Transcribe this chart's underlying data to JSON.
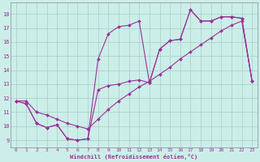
{
  "xlabel": "Windchill (Refroidissement éolien,°C)",
  "xlim": [
    -0.5,
    23.5
  ],
  "ylim": [
    8.5,
    18.8
  ],
  "xticks": [
    0,
    1,
    2,
    3,
    4,
    5,
    6,
    7,
    8,
    9,
    10,
    11,
    12,
    13,
    14,
    15,
    16,
    17,
    18,
    19,
    20,
    21,
    22,
    23
  ],
  "yticks": [
    9,
    10,
    11,
    12,
    13,
    14,
    15,
    16,
    17,
    18
  ],
  "bg_color": "#cceee8",
  "grid_color": "#aacccc",
  "line_color": "#993399",
  "line1_x": [
    0,
    1,
    2,
    3,
    4,
    5,
    6,
    7,
    8,
    9,
    10,
    11,
    12,
    13,
    14,
    15,
    16,
    17,
    18,
    19,
    20,
    21,
    22,
    23
  ],
  "line1_y": [
    11.8,
    11.6,
    10.2,
    9.9,
    10.1,
    9.1,
    9.0,
    9.1,
    12.6,
    12.9,
    13.0,
    13.2,
    13.3,
    13.1,
    15.5,
    16.1,
    16.2,
    18.3,
    17.5,
    17.5,
    17.8,
    17.8,
    17.7,
    13.2
  ],
  "line2_x": [
    0,
    1,
    2,
    3,
    4,
    5,
    6,
    7,
    8,
    9,
    10,
    11,
    12,
    13,
    14,
    15,
    16,
    17,
    18,
    19,
    20,
    21,
    22,
    23
  ],
  "line2_y": [
    11.8,
    11.6,
    10.2,
    9.9,
    10.1,
    9.1,
    9.0,
    9.1,
    14.8,
    16.6,
    17.1,
    17.2,
    17.5,
    13.1,
    15.5,
    16.1,
    16.2,
    18.3,
    17.5,
    17.5,
    17.8,
    17.8,
    17.7,
    13.2
  ],
  "line3_x": [
    0,
    1,
    2,
    3,
    4,
    5,
    6,
    7,
    8,
    9,
    10,
    11,
    12,
    13,
    14,
    15,
    16,
    17,
    18,
    19,
    20,
    21,
    22,
    23
  ],
  "line3_y": [
    11.8,
    11.8,
    11.0,
    10.8,
    10.5,
    10.2,
    10.0,
    9.8,
    10.5,
    11.2,
    11.8,
    12.3,
    12.8,
    13.2,
    13.7,
    14.2,
    14.8,
    15.3,
    15.8,
    16.3,
    16.8,
    17.2,
    17.5,
    13.2
  ]
}
